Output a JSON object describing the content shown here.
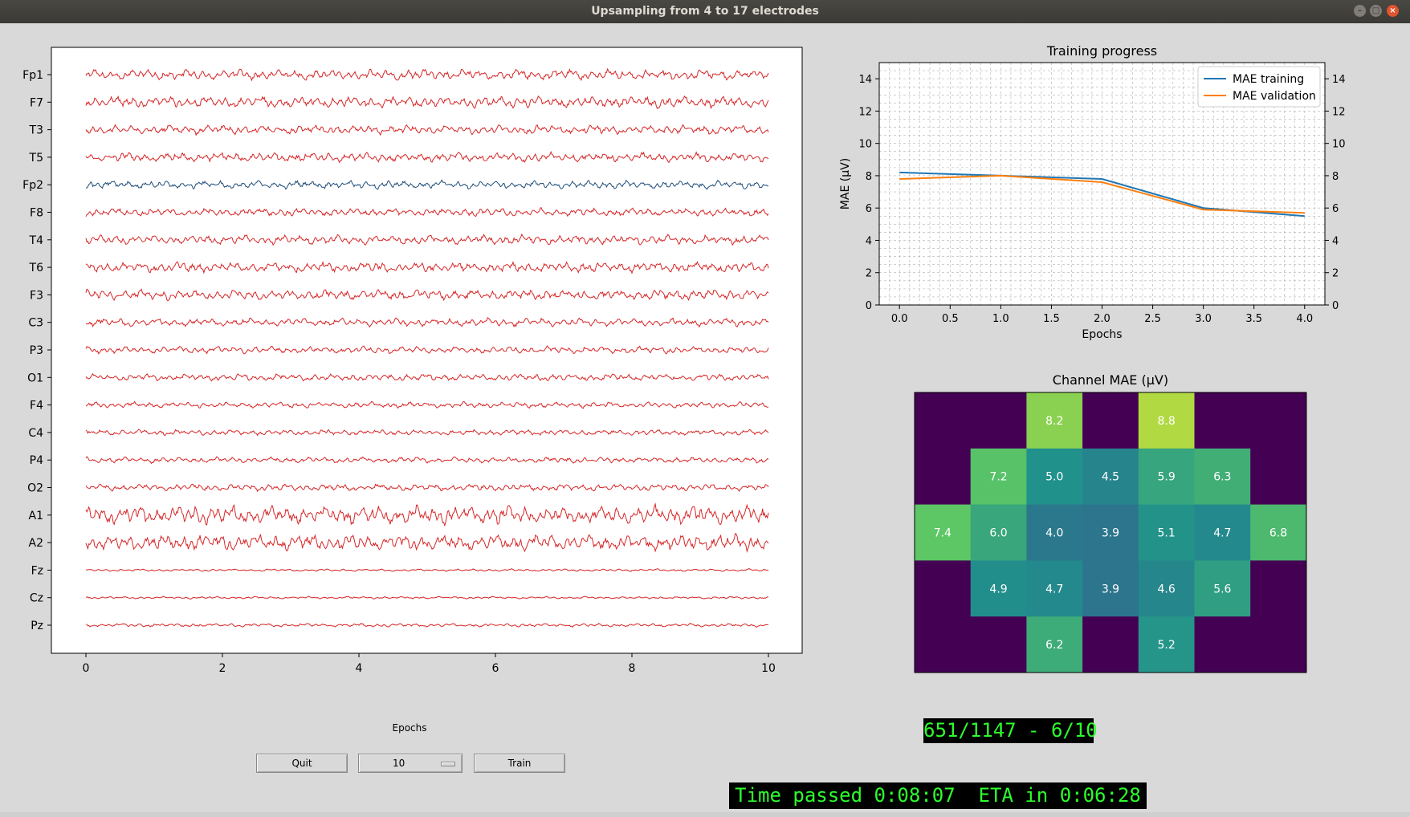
{
  "window": {
    "title": "Upsampling from 4 to 17 electrodes",
    "buttons": {
      "minimize": "–",
      "maximize": "□",
      "close": "×"
    }
  },
  "eeg_plot": {
    "channels": [
      "Fp1",
      "F7",
      "T3",
      "T5",
      "Fp2",
      "F8",
      "T4",
      "T6",
      "F3",
      "C3",
      "P3",
      "O1",
      "F4",
      "C4",
      "P4",
      "O2",
      "A1",
      "A2",
      "Fz",
      "Cz",
      "Pz"
    ],
    "highlighted_channel": "Fp2",
    "channel_amplitude": [
      0.9,
      1.0,
      0.8,
      0.8,
      0.7,
      0.7,
      0.8,
      0.9,
      0.9,
      0.7,
      0.6,
      0.6,
      0.5,
      0.5,
      0.5,
      0.6,
      1.6,
      1.4,
      0.2,
      0.2,
      0.3
    ],
    "xlim": [
      0,
      10
    ],
    "xticks": [
      "0",
      "2",
      "4",
      "6",
      "8",
      "10"
    ],
    "trace_color": "#d62728",
    "highlight_color": "#1f4e79"
  },
  "chart_data": [
    {
      "type": "line",
      "title": "Training progress",
      "xlabel": "Epochs",
      "ylabel": "MAE (µV)",
      "xlim": [
        -0.2,
        4.2
      ],
      "ylim": [
        0,
        15
      ],
      "xticks": [
        "0.0",
        "0.5",
        "1.0",
        "1.5",
        "2.0",
        "2.5",
        "3.0",
        "3.5",
        "4.0"
      ],
      "yticks": [
        "0",
        "2",
        "4",
        "6",
        "8",
        "10",
        "12",
        "14"
      ],
      "grid": true,
      "legend": "top-right",
      "x": [
        0,
        1,
        2,
        3,
        4
      ],
      "series": [
        {
          "name": "MAE training",
          "color": "#1f77b4",
          "values": [
            8.2,
            8.0,
            7.8,
            6.0,
            5.5
          ]
        },
        {
          "name": "MAE validation",
          "color": "#ff7f0e",
          "values": [
            7.8,
            8.0,
            7.6,
            5.9,
            5.7
          ]
        }
      ]
    },
    {
      "type": "heatmap",
      "title": "Channel MAE (µV)",
      "rows": 5,
      "cols": 7,
      "colormap": "viridis",
      "vmin": 0,
      "vmax": 10,
      "cells": [
        [
          "",
          "",
          "8.2",
          "",
          "8.8",
          "",
          ""
        ],
        [
          "",
          "7.2",
          "5.0",
          "4.5",
          "5.9",
          "6.3",
          ""
        ],
        [
          "7.4",
          "6.0",
          "4.0",
          "3.9",
          "5.1",
          "4.7",
          "6.8"
        ],
        [
          "",
          "4.9",
          "4.7",
          "3.9",
          "4.6",
          "5.6",
          ""
        ],
        [
          "",
          "",
          "6.2",
          "",
          "5.2",
          "",
          ""
        ]
      ]
    }
  ],
  "controls": {
    "epochs_label": "Epochs",
    "quit_label": "Quit",
    "epochs_value": "10",
    "train_label": "Train"
  },
  "status": {
    "progress_text": "651/1147 - 6/10",
    "time_text": "Time passed 0:08:07  ETA in 0:06:28"
  }
}
